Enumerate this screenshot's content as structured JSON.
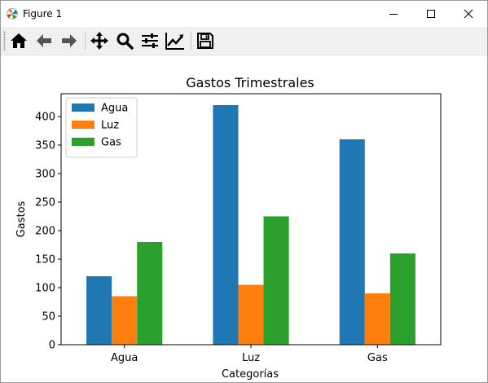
{
  "window": {
    "title": "Figure 1",
    "controls": [
      "minimize-icon",
      "maximize-icon",
      "close-icon"
    ]
  },
  "toolbar": {
    "buttons": [
      {
        "name": "home-button",
        "icon": "home-icon"
      },
      {
        "name": "back-button",
        "icon": "arrow-left-icon"
      },
      {
        "name": "forward-button",
        "icon": "arrow-right-icon"
      },
      {
        "name": "pan-button",
        "icon": "move-icon"
      },
      {
        "name": "zoom-button",
        "icon": "magnifier-icon"
      },
      {
        "name": "subplots-button",
        "icon": "sliders-icon"
      },
      {
        "name": "edit-axes-button",
        "icon": "chart-line-icon"
      },
      {
        "name": "save-button",
        "icon": "floppy-icon"
      }
    ]
  },
  "chart_data": {
    "type": "bar",
    "title": "Gastos Trimestrales",
    "xlabel": "Categorías",
    "ylabel": "Gastos",
    "categories": [
      "Agua",
      "Luz",
      "Gas"
    ],
    "series": [
      {
        "name": "Agua",
        "color": "#1f77b4",
        "values": [
          120,
          420,
          360
        ]
      },
      {
        "name": "Luz",
        "color": "#ff7f0e",
        "values": [
          85,
          105,
          90
        ]
      },
      {
        "name": "Gas",
        "color": "#2ca02c",
        "values": [
          180,
          225,
          160
        ]
      }
    ],
    "ylim": [
      0,
      440
    ],
    "yticks": [
      0,
      50,
      100,
      150,
      200,
      250,
      300,
      350,
      400
    ],
    "grid": false,
    "legend": "top-left"
  }
}
